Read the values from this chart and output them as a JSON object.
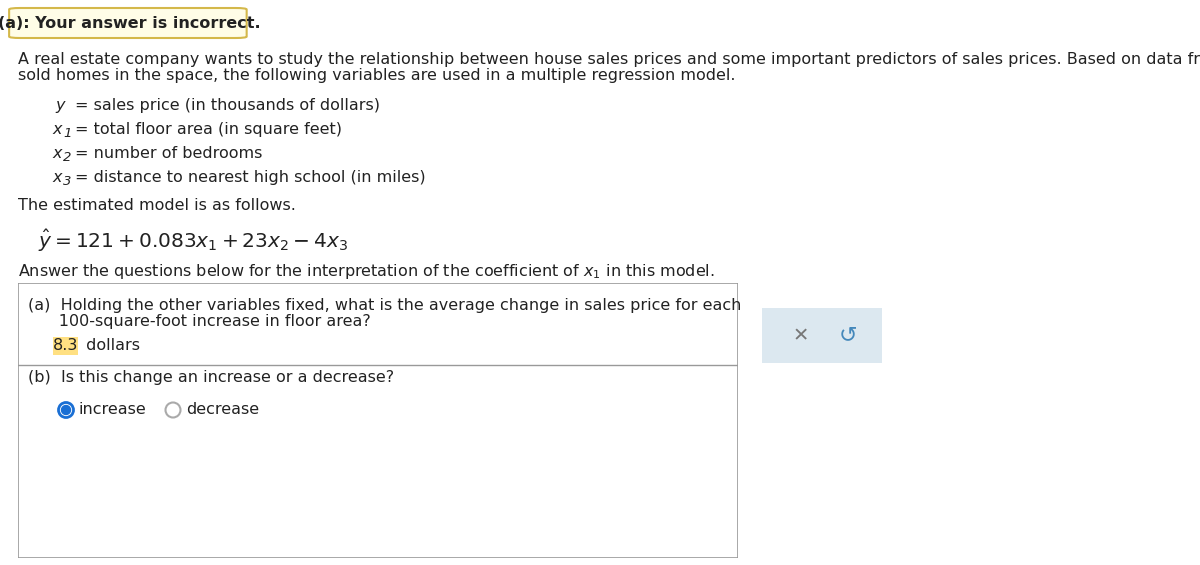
{
  "title_box_text": "(a): Your answer is incorrect.",
  "title_box_color": "#fffde7",
  "title_box_border_color": "#d4b84a",
  "intro_line1": "A real estate company wants to study the relationship between house sales prices and some important predictors of sales prices. Based on data from recently",
  "intro_line2": "sold homes in the space, the following variables are used in a multiple regression model.",
  "var_y_italic": "y",
  "var_y_desc": "= sales price (in thousands of dollars)",
  "var_x1_italic": "x",
  "var_x1_sub": "1",
  "var_x1_desc": "= total floor area (in square feet)",
  "var_x2_italic": "x",
  "var_x2_sub": "2",
  "var_x2_desc": "= number of bedrooms",
  "var_x3_italic": "x",
  "var_x3_sub": "3",
  "var_x3_desc": "= distance to nearest high school (in miles)",
  "model_intro": "The estimated model is as follows.",
  "qa_box_border": "#999999",
  "part_a_q1": "(a)  Holding the other variables fixed, what is the average change in sales price for each",
  "part_a_q2": "      100-square-foot increase in floor area?",
  "part_a_answer_num": "8.3",
  "part_a_answer_unit": " dollars",
  "part_a_highlight": "#ffe082",
  "part_b_question": "(b)  Is this change an increase or a decrease?",
  "part_b_answer1": "increase",
  "part_b_answer2": "decrease",
  "answer_box_border": "#a8bfd0",
  "answer_box_bg": "#dce8f0",
  "x_symbol_color": "#777777",
  "undo_symbol_color": "#4488bb",
  "bg_color": "#ffffff",
  "text_color": "#222222",
  "font_size": 11.5
}
